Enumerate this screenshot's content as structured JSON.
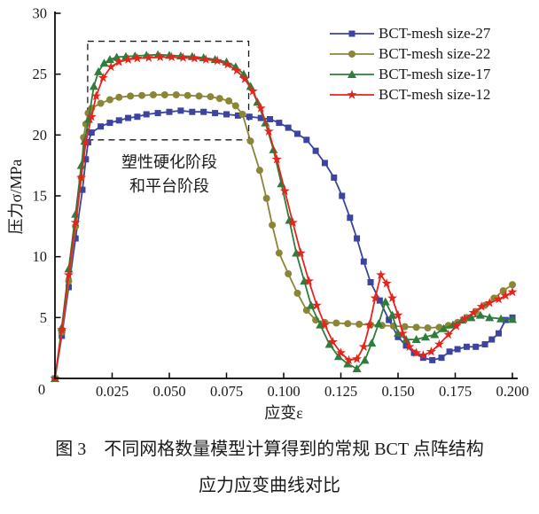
{
  "figure": {
    "caption_line1": "图 3　不同网格数量模型计算得到的常规 BCT 点阵结构",
    "caption_line2": "应力应变曲线对比"
  },
  "chart_data": {
    "type": "line",
    "title": "",
    "xlabel": "应变ε",
    "ylabel": "压力σ/MPa",
    "xlim": [
      0,
      0.2
    ],
    "ylim": [
      0,
      30
    ],
    "grid": false,
    "legend_position": "top-right",
    "xticks": {
      "values": [
        0,
        0.025,
        0.05,
        0.075,
        0.1,
        0.125,
        0.15,
        0.175,
        0.2
      ],
      "labels": [
        "0",
        "0.025",
        "0.050",
        "0.075",
        "0.100",
        "0.125",
        "0.150",
        "0.175",
        "0.200"
      ]
    },
    "yticks": {
      "values": [
        5,
        10,
        15,
        20,
        25,
        30
      ],
      "labels": [
        "5",
        "10",
        "15",
        "20",
        "25",
        "30"
      ]
    },
    "annotation": {
      "line1": "塑性硬化阶段",
      "line2": "和平台阶段",
      "x": 0.05,
      "y": 17.8
    },
    "highlight_box": {
      "style": "dashed",
      "x0": 0.0143,
      "x1": 0.0847,
      "y0": 19.6,
      "y1": 27.7
    },
    "series": [
      {
        "name": "BCT-mesh size-27",
        "color": "#3c43a0",
        "marker": "square",
        "points": [
          [
            0,
            0
          ],
          [
            0.003,
            3.5
          ],
          [
            0.006,
            7.5
          ],
          [
            0.009,
            11.5
          ],
          [
            0.012,
            15.5
          ],
          [
            0.0135,
            18.0
          ],
          [
            0.0145,
            19.4
          ],
          [
            0.016,
            20.2
          ],
          [
            0.02,
            20.7
          ],
          [
            0.024,
            21.0
          ],
          [
            0.028,
            21.2
          ],
          [
            0.032,
            21.4
          ],
          [
            0.036,
            21.5
          ],
          [
            0.04,
            21.7
          ],
          [
            0.045,
            21.8
          ],
          [
            0.05,
            21.9
          ],
          [
            0.055,
            22.0
          ],
          [
            0.06,
            21.9
          ],
          [
            0.065,
            21.9
          ],
          [
            0.07,
            21.8
          ],
          [
            0.075,
            21.7
          ],
          [
            0.08,
            21.6
          ],
          [
            0.085,
            21.5
          ],
          [
            0.09,
            21.4
          ],
          [
            0.094,
            21.3
          ],
          [
            0.098,
            21.0
          ],
          [
            0.102,
            20.6
          ],
          [
            0.106,
            20.1
          ],
          [
            0.11,
            19.6
          ],
          [
            0.114,
            18.7
          ],
          [
            0.118,
            17.7
          ],
          [
            0.122,
            16.5
          ],
          [
            0.1255,
            15.0
          ],
          [
            0.129,
            13.2
          ],
          [
            0.132,
            11.5
          ],
          [
            0.135,
            9.6
          ],
          [
            0.138,
            7.9
          ],
          [
            0.142,
            6.4
          ],
          [
            0.146,
            4.8
          ],
          [
            0.15,
            3.4
          ],
          [
            0.1535,
            2.7
          ],
          [
            0.157,
            2.1
          ],
          [
            0.161,
            1.7
          ],
          [
            0.165,
            1.5
          ],
          [
            0.169,
            1.7
          ],
          [
            0.1725,
            2.2
          ],
          [
            0.176,
            2.4
          ],
          [
            0.18,
            2.6
          ],
          [
            0.184,
            2.6
          ],
          [
            0.188,
            2.8
          ],
          [
            0.191,
            3.2
          ],
          [
            0.194,
            3.7
          ],
          [
            0.197,
            4.8
          ],
          [
            0.2,
            5.0
          ]
        ]
      },
      {
        "name": "BCT-mesh size-22",
        "color": "#8b8637",
        "marker": "circle",
        "points": [
          [
            0,
            0
          ],
          [
            0.003,
            3.8
          ],
          [
            0.006,
            8.0
          ],
          [
            0.009,
            12.5
          ],
          [
            0.0115,
            16.5
          ],
          [
            0.0125,
            19.8
          ],
          [
            0.0135,
            20.9
          ],
          [
            0.0145,
            21.8
          ],
          [
            0.016,
            22.2
          ],
          [
            0.02,
            22.6
          ],
          [
            0.024,
            22.9
          ],
          [
            0.028,
            23.1
          ],
          [
            0.033,
            23.2
          ],
          [
            0.038,
            23.25
          ],
          [
            0.043,
            23.3
          ],
          [
            0.048,
            23.3
          ],
          [
            0.053,
            23.3
          ],
          [
            0.058,
            23.25
          ],
          [
            0.063,
            23.2
          ],
          [
            0.068,
            23.15
          ],
          [
            0.072,
            23.0
          ],
          [
            0.076,
            22.8
          ],
          [
            0.079,
            22.4
          ],
          [
            0.082,
            21.7
          ],
          [
            0.0855,
            19.5
          ],
          [
            0.0895,
            17.1
          ],
          [
            0.0925,
            14.8
          ],
          [
            0.095,
            12.6
          ],
          [
            0.098,
            10.3
          ],
          [
            0.102,
            8.6
          ],
          [
            0.106,
            7.0
          ],
          [
            0.11,
            5.6
          ],
          [
            0.114,
            4.8
          ],
          [
            0.118,
            4.6
          ],
          [
            0.123,
            4.55
          ],
          [
            0.128,
            4.5
          ],
          [
            0.133,
            4.45
          ],
          [
            0.138,
            4.4
          ],
          [
            0.143,
            4.35
          ],
          [
            0.148,
            4.3
          ],
          [
            0.153,
            4.25
          ],
          [
            0.158,
            4.2
          ],
          [
            0.163,
            4.15
          ],
          [
            0.168,
            4.2
          ],
          [
            0.172,
            4.35
          ],
          [
            0.176,
            4.6
          ],
          [
            0.18,
            5.0
          ],
          [
            0.184,
            5.5
          ],
          [
            0.188,
            6.0
          ],
          [
            0.192,
            6.6
          ],
          [
            0.196,
            7.2
          ],
          [
            0.2,
            7.7
          ]
        ]
      },
      {
        "name": "BCT-mesh size-17",
        "color": "#2e7d3c",
        "marker": "triangle",
        "points": [
          [
            0,
            0
          ],
          [
            0.003,
            4.2
          ],
          [
            0.006,
            9.0
          ],
          [
            0.009,
            13.5
          ],
          [
            0.0115,
            17.5
          ],
          [
            0.013,
            19.5
          ],
          [
            0.0147,
            21.3
          ],
          [
            0.017,
            24.0
          ],
          [
            0.019,
            25.2
          ],
          [
            0.0215,
            25.9
          ],
          [
            0.024,
            26.2
          ],
          [
            0.027,
            26.4
          ],
          [
            0.031,
            26.45
          ],
          [
            0.035,
            26.5
          ],
          [
            0.04,
            26.55
          ],
          [
            0.045,
            26.6
          ],
          [
            0.05,
            26.55
          ],
          [
            0.055,
            26.5
          ],
          [
            0.06,
            26.45
          ],
          [
            0.065,
            26.35
          ],
          [
            0.07,
            26.2
          ],
          [
            0.075,
            26.0
          ],
          [
            0.079,
            25.6
          ],
          [
            0.0825,
            25.0
          ],
          [
            0.0855,
            24.0
          ],
          [
            0.0885,
            22.7
          ],
          [
            0.092,
            21.0
          ],
          [
            0.0955,
            18.8
          ],
          [
            0.099,
            16.0
          ],
          [
            0.1025,
            13.0
          ],
          [
            0.1055,
            10.3
          ],
          [
            0.109,
            8.0
          ],
          [
            0.112,
            6.0
          ],
          [
            0.116,
            4.4
          ],
          [
            0.12,
            2.8
          ],
          [
            0.124,
            1.8
          ],
          [
            0.128,
            1.2
          ],
          [
            0.132,
            0.8
          ],
          [
            0.1355,
            1.5
          ],
          [
            0.1385,
            2.9
          ],
          [
            0.1415,
            4.5
          ],
          [
            0.1445,
            6.3
          ],
          [
            0.1475,
            5.2
          ],
          [
            0.15,
            3.7
          ],
          [
            0.1535,
            3.2
          ],
          [
            0.158,
            3.2
          ],
          [
            0.162,
            3.4
          ],
          [
            0.166,
            3.6
          ],
          [
            0.17,
            4.1
          ],
          [
            0.174,
            4.4
          ],
          [
            0.178,
            4.8
          ],
          [
            0.182,
            5.0
          ],
          [
            0.186,
            5.2
          ],
          [
            0.19,
            5.0
          ],
          [
            0.195,
            4.9
          ],
          [
            0.2,
            4.85
          ]
        ]
      },
      {
        "name": "BCT-mesh size-12",
        "color": "#e2251d",
        "marker": "star",
        "points": [
          [
            0,
            0
          ],
          [
            0.003,
            4.0
          ],
          [
            0.006,
            8.5
          ],
          [
            0.009,
            12.8
          ],
          [
            0.0115,
            16.5
          ],
          [
            0.0135,
            19.4
          ],
          [
            0.016,
            21.5
          ],
          [
            0.018,
            23.2
          ],
          [
            0.021,
            24.7
          ],
          [
            0.0245,
            25.6
          ],
          [
            0.028,
            26.0
          ],
          [
            0.032,
            26.2
          ],
          [
            0.036,
            26.3
          ],
          [
            0.041,
            26.35
          ],
          [
            0.046,
            26.4
          ],
          [
            0.051,
            26.4
          ],
          [
            0.056,
            26.35
          ],
          [
            0.061,
            26.3
          ],
          [
            0.066,
            26.2
          ],
          [
            0.071,
            26.1
          ],
          [
            0.0755,
            25.8
          ],
          [
            0.0795,
            25.3
          ],
          [
            0.083,
            24.6
          ],
          [
            0.0865,
            23.6
          ],
          [
            0.09,
            22.2
          ],
          [
            0.0935,
            20.3
          ],
          [
            0.097,
            18.0
          ],
          [
            0.1005,
            15.4
          ],
          [
            0.104,
            12.8
          ],
          [
            0.1075,
            10.3
          ],
          [
            0.111,
            8.0
          ],
          [
            0.1145,
            6.0
          ],
          [
            0.118,
            4.4
          ],
          [
            0.1215,
            3.0
          ],
          [
            0.125,
            2.1
          ],
          [
            0.1285,
            1.5
          ],
          [
            0.132,
            1.6
          ],
          [
            0.135,
            2.6
          ],
          [
            0.1375,
            4.4
          ],
          [
            0.14,
            6.6
          ],
          [
            0.1425,
            8.5
          ],
          [
            0.145,
            7.8
          ],
          [
            0.1475,
            6.6
          ],
          [
            0.15,
            5.2
          ],
          [
            0.152,
            3.7
          ],
          [
            0.155,
            2.6
          ],
          [
            0.158,
            2.1
          ],
          [
            0.161,
            1.9
          ],
          [
            0.1645,
            2.2
          ],
          [
            0.168,
            2.8
          ],
          [
            0.172,
            3.6
          ],
          [
            0.1755,
            4.3
          ],
          [
            0.179,
            4.9
          ],
          [
            0.183,
            5.4
          ],
          [
            0.1865,
            5.9
          ],
          [
            0.19,
            6.2
          ],
          [
            0.194,
            6.5
          ],
          [
            0.197,
            6.8
          ],
          [
            0.2,
            7.1
          ]
        ]
      }
    ]
  }
}
